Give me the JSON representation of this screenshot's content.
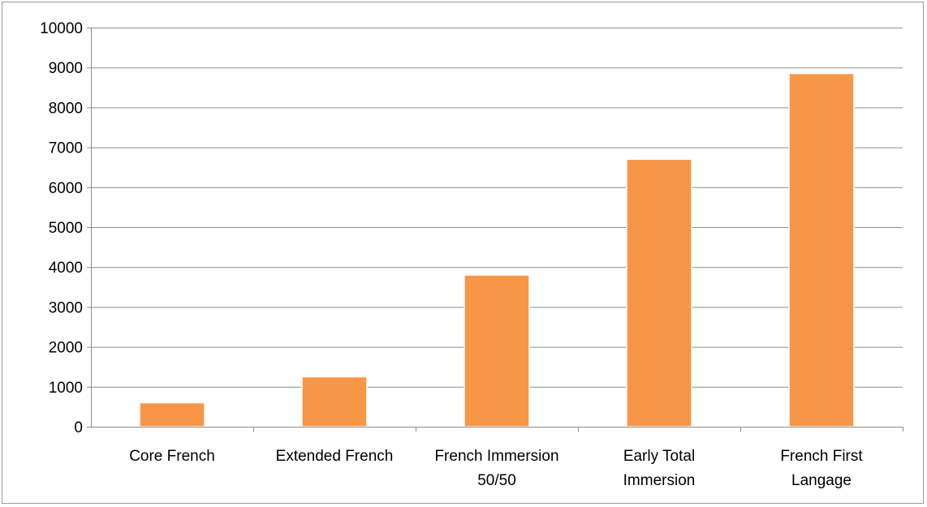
{
  "chart_data": {
    "type": "bar",
    "title": "",
    "xlabel": "",
    "ylabel": "",
    "categories": [
      [
        "Core French"
      ],
      [
        "Extended French"
      ],
      [
        "French Immersion",
        "50/50"
      ],
      [
        "Early Total",
        "Immersion"
      ],
      [
        "French First",
        "Langage"
      ]
    ],
    "values": [
      600,
      1250,
      3800,
      6700,
      8850
    ],
    "ylim": [
      0,
      10000
    ],
    "yticks": [
      "0",
      "1000",
      "2000",
      "3000",
      "4000",
      "5000",
      "6000",
      "7000",
      "8000",
      "9000",
      "10000"
    ],
    "grid": true,
    "legend": "none",
    "bar_color": "#f79646",
    "bar_edge_color": "#ffffff",
    "grid_color": "#8c8c8c"
  }
}
